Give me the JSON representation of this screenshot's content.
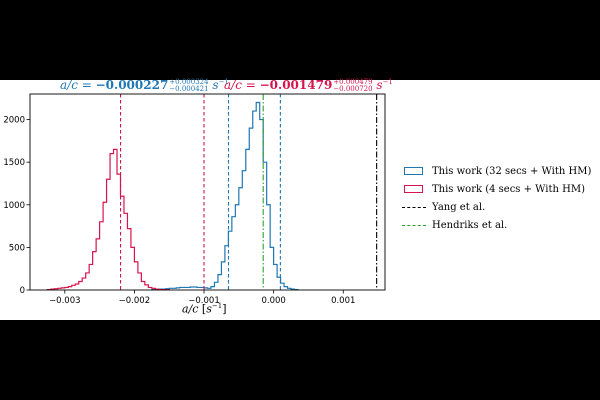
{
  "chart_data": {
    "type": "histogram",
    "xlabel_var": "a/c",
    "xlabel_unit": "s",
    "xlabel_exp": "−1",
    "xlim": [
      -0.0035,
      0.0016
    ],
    "ylim": [
      0,
      2300
    ],
    "xticks": [
      -0.003,
      -0.002,
      -0.001,
      0.0,
      0.001
    ],
    "xtick_labels": [
      "−0.003",
      "−0.002",
      "−0.001",
      "0.000",
      "0.001"
    ],
    "yticks": [
      0,
      500,
      1000,
      1500,
      2000
    ],
    "ytick_labels": [
      "0",
      "500",
      "1000",
      "1500",
      "2000"
    ],
    "bin_width": 5e-05,
    "series": [
      {
        "name": "This work (32 secs + With HM)",
        "color": "#1f77b4",
        "x_start": -0.00175,
        "counts": [
          5,
          5,
          10,
          10,
          15,
          20,
          20,
          25,
          30,
          30,
          30,
          35,
          35,
          30,
          30,
          25,
          20,
          40,
          90,
          180,
          330,
          520,
          690,
          860,
          1000,
          1200,
          1400,
          1650,
          1900,
          2100,
          2200,
          2000,
          1500,
          1000,
          500,
          300,
          150,
          80,
          40,
          20,
          10,
          5
        ]
      },
      {
        "name": "This work (4 secs + With HM)",
        "color": "#d6144d",
        "x_start": -0.00325,
        "counts": [
          5,
          10,
          15,
          20,
          25,
          30,
          40,
          55,
          70,
          100,
          140,
          200,
          300,
          450,
          600,
          800,
          1030,
          1300,
          1600,
          1650,
          1360,
          1100,
          900,
          720,
          500,
          330,
          200,
          100,
          60,
          30,
          20,
          10,
          5,
          5,
          5
        ]
      }
    ],
    "vlines": [
      {
        "name": "",
        "x": -0.000648,
        "color": "#1f77b4",
        "style": "dashed"
      },
      {
        "name": "",
        "x": 9.7e-05,
        "color": "#1f77b4",
        "style": "dashed"
      },
      {
        "name": "",
        "x": -0.002199,
        "color": "#d6144d",
        "style": "dashed"
      },
      {
        "name": "",
        "x": -0.001,
        "color": "#d6144d",
        "style": "dashed"
      },
      {
        "name": "Yang et al.",
        "x": 0.00148,
        "color": "#000000",
        "style": "dashdot"
      },
      {
        "name": "Hendriks et al.",
        "x": -0.00015,
        "color": "#2ca02c",
        "style": "dashdot"
      }
    ],
    "annotations": [
      {
        "color": "#1f77b4",
        "var": "a/c",
        "value": "−0.000227",
        "plus": "+0.000324",
        "minus": "−0.000421",
        "unit": "s",
        "unit_exp": "−1"
      },
      {
        "color": "#d6144d",
        "var": "a/c",
        "value": "−0.001479",
        "plus": "+0.000479",
        "minus": "−0.000720",
        "unit": "s",
        "unit_exp": "−1"
      }
    ],
    "legend_position": "right"
  }
}
